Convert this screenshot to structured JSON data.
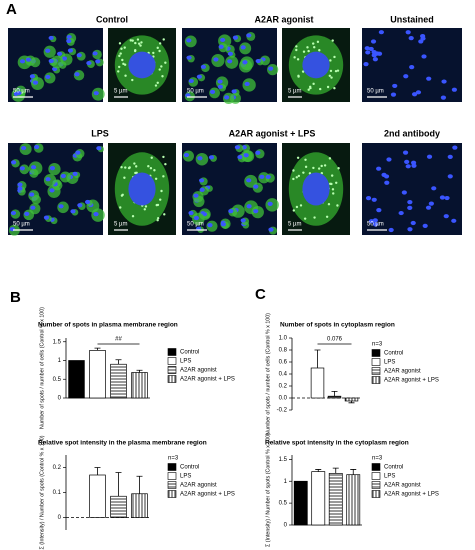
{
  "panels": [
    "A",
    "B",
    "C"
  ],
  "images": [
    {
      "title": "Control",
      "scale": "50 µm",
      "inset_scale": "5 µm"
    },
    {
      "title": "A2AR agonist",
      "scale": "50 µm",
      "inset_scale": "5 µm"
    },
    {
      "title": "Unstained",
      "scale": "50 µm"
    },
    {
      "title": "LPS",
      "scale": "50 µm",
      "inset_scale": "5 µm"
    },
    {
      "title": "A2AR agonist + LPS",
      "scale": "50 µm",
      "inset_scale": "5 µm"
    },
    {
      "title": "2nd antibody",
      "scale": "50 µm"
    }
  ],
  "chart_data": [
    {
      "type": "bar",
      "title": "Number of spots in plasma membrane region",
      "ylabel": "Number of spots / number of cells (Control % x 100)",
      "categories": [
        "Control",
        "LPS",
        "A2AR agonist",
        "A2AR agonist + LPS"
      ],
      "values": [
        1,
        1.27,
        0.9,
        0.68
      ],
      "errors": [
        0,
        0.06,
        0.12,
        0.06
      ],
      "colors": [
        "#000000",
        "#ffffff",
        "#ffffff",
        "#ffffff"
      ],
      "patterns": [
        null,
        null,
        "horizontal",
        "vertical"
      ],
      "annotation": "##",
      "ylim": [
        0,
        1.6
      ],
      "yticks": [
        0,
        0.5,
        1,
        1.5
      ]
    },
    {
      "type": "bar",
      "title": "Number of spots in cytoplasm region",
      "ylabel": "Number of spots / number of cells (Control % x 100)",
      "note": "n=3",
      "categories": [
        "Control",
        "LPS",
        "A2AR agonist",
        "A2AR agonist + LPS"
      ],
      "values": [
        0,
        0.5,
        0.03,
        -0.05
      ],
      "errors": [
        0,
        0.3,
        0.08,
        0.03
      ],
      "colors": [
        "#000000",
        "#ffffff",
        "#ffffff",
        "#ffffff"
      ],
      "patterns": [
        null,
        null,
        "horizontal",
        "vertical"
      ],
      "annotation": "0.076",
      "zero_line": true,
      "ylim": [
        -0.2,
        1.0
      ],
      "yticks": [
        {
          "value": -0.2,
          "label": "-0.2"
        },
        {
          "value": 0,
          "label": "0.0"
        },
        0.2,
        0.4,
        0.6,
        0.8,
        {
          "value": 1,
          "label": "1.0"
        }
      ]
    },
    {
      "type": "bar",
      "title": "Relative spot intensity in the plasma membrane region",
      "ylabel": "Σ (Intensity) / Number of spots (Control % x 100)",
      "note": "n=3",
      "categories": [
        "Control",
        "LPS",
        "A2AR agonist",
        "A2AR agonist + LPS"
      ],
      "values": [
        0,
        0.17,
        0.085,
        0.095
      ],
      "errors": [
        0,
        0.03,
        0.095,
        0.07
      ],
      "colors": [
        "#000000",
        "#ffffff",
        "#ffffff",
        "#ffffff"
      ],
      "patterns": [
        null,
        null,
        "horizontal",
        "vertical"
      ],
      "zero_line": true,
      "ylim": [
        -0.05,
        0.25
      ],
      "yticks": [
        0,
        0.1,
        0.2
      ]
    },
    {
      "type": "bar",
      "title": "Relative spot intensity in the cytoplasm region",
      "ylabel": "Σ (Intensity) / Number of spots (Control % x 100)",
      "note": "n=3",
      "categories": [
        "Control",
        "LPS",
        "A2AR agonist",
        "A2AR agonist + LPS"
      ],
      "values": [
        1,
        1.22,
        1.18,
        1.15
      ],
      "errors": [
        0,
        0.05,
        0.12,
        0.12
      ],
      "colors": [
        "#000000",
        "#ffffff",
        "#ffffff",
        "#ffffff"
      ],
      "patterns": [
        null,
        null,
        "horizontal",
        "vertical"
      ],
      "ylim": [
        0,
        1.6
      ],
      "yticks": [
        0,
        0.5,
        1,
        1.5
      ]
    }
  ]
}
